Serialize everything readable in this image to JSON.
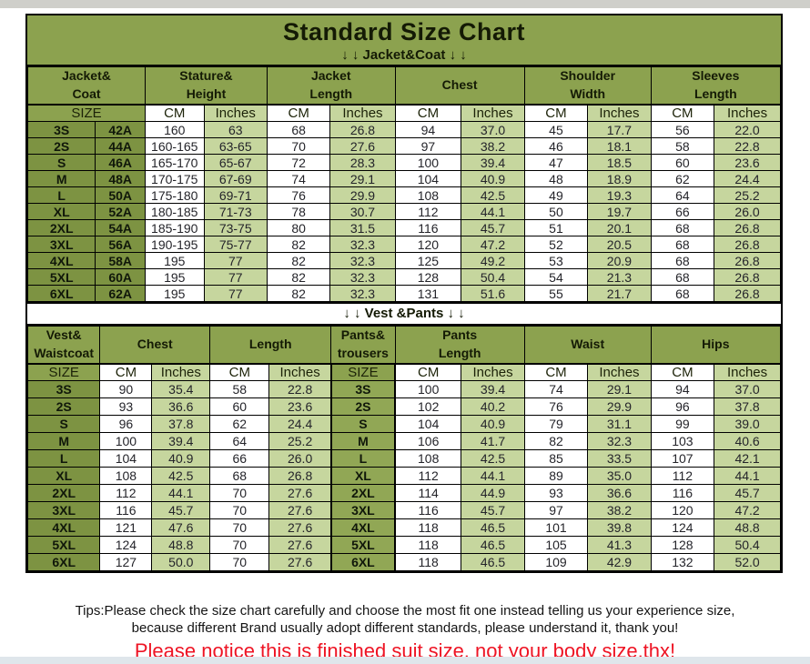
{
  "title": "Standard Size Chart",
  "banners": {
    "jacket": "↓ ↓  Jacket&Coat ↓ ↓",
    "vest": "↓ ↓  Vest &Pants ↓ ↓"
  },
  "jacket_table": {
    "column_groups": [
      {
        "label": "Jacket&\nCoat",
        "span": 2
      },
      {
        "label": "Stature&\nHeight",
        "span": 2
      },
      {
        "label": "Jacket\nLength",
        "span": 2
      },
      {
        "label": "Chest",
        "span": 2
      },
      {
        "label": "Shoulder\nWidth",
        "span": 2
      },
      {
        "label": "Sleeves\nLength",
        "span": 2
      }
    ],
    "unit_row": [
      "SIZE",
      "CM",
      "Inches",
      "CM",
      "Inches",
      "CM",
      "Inches",
      "CM",
      "Inches",
      "CM",
      "Inches"
    ],
    "rows": [
      [
        "3S",
        "42A",
        "160",
        "63",
        "68",
        "26.8",
        "94",
        "37.0",
        "45",
        "17.7",
        "56",
        "22.0"
      ],
      [
        "2S",
        "44A",
        "160-165",
        "63-65",
        "70",
        "27.6",
        "97",
        "38.2",
        "46",
        "18.1",
        "58",
        "22.8"
      ],
      [
        "S",
        "46A",
        "165-170",
        "65-67",
        "72",
        "28.3",
        "100",
        "39.4",
        "47",
        "18.5",
        "60",
        "23.6"
      ],
      [
        "M",
        "48A",
        "170-175",
        "67-69",
        "74",
        "29.1",
        "104",
        "40.9",
        "48",
        "18.9",
        "62",
        "24.4"
      ],
      [
        "L",
        "50A",
        "175-180",
        "69-71",
        "76",
        "29.9",
        "108",
        "42.5",
        "49",
        "19.3",
        "64",
        "25.2"
      ],
      [
        "XL",
        "52A",
        "180-185",
        "71-73",
        "78",
        "30.7",
        "112",
        "44.1",
        "50",
        "19.7",
        "66",
        "26.0"
      ],
      [
        "2XL",
        "54A",
        "185-190",
        "73-75",
        "80",
        "31.5",
        "116",
        "45.7",
        "51",
        "20.1",
        "68",
        "26.8"
      ],
      [
        "3XL",
        "56A",
        "190-195",
        "75-77",
        "82",
        "32.3",
        "120",
        "47.2",
        "52",
        "20.5",
        "68",
        "26.8"
      ],
      [
        "4XL",
        "58A",
        "195",
        "77",
        "82",
        "32.3",
        "125",
        "49.2",
        "53",
        "20.9",
        "68",
        "26.8"
      ],
      [
        "5XL",
        "60A",
        "195",
        "77",
        "82",
        "32.3",
        "128",
        "50.4",
        "54",
        "21.3",
        "68",
        "26.8"
      ],
      [
        "6XL",
        "62A",
        "195",
        "77",
        "82",
        "32.3",
        "131",
        "51.6",
        "55",
        "21.7",
        "68",
        "26.8"
      ]
    ]
  },
  "vest_table": {
    "column_groups": [
      {
        "label": "Vest&\nWaistcoat",
        "span": 1
      },
      {
        "label": "Chest",
        "span": 2
      },
      {
        "label": "Length",
        "span": 2
      },
      {
        "label": "Pants&\ntrousers",
        "span": 1
      },
      {
        "label": "Pants\nLength",
        "span": 2
      },
      {
        "label": "Waist",
        "span": 2
      },
      {
        "label": "Hips",
        "span": 2
      }
    ],
    "unit_row": [
      "SIZE",
      "CM",
      "Inches",
      "CM",
      "Inches",
      "SIZE",
      "CM",
      "Inches",
      "CM",
      "Inches",
      "CM",
      "Inches"
    ],
    "rows": [
      [
        "3S",
        "90",
        "35.4",
        "58",
        "22.8",
        "3S",
        "100",
        "39.4",
        "74",
        "29.1",
        "94",
        "37.0"
      ],
      [
        "2S",
        "93",
        "36.6",
        "60",
        "23.6",
        "2S",
        "102",
        "40.2",
        "76",
        "29.9",
        "96",
        "37.8"
      ],
      [
        "S",
        "96",
        "37.8",
        "62",
        "24.4",
        "S",
        "104",
        "40.9",
        "79",
        "31.1",
        "99",
        "39.0"
      ],
      [
        "M",
        "100",
        "39.4",
        "64",
        "25.2",
        "M",
        "106",
        "41.7",
        "82",
        "32.3",
        "103",
        "40.6"
      ],
      [
        "L",
        "104",
        "40.9",
        "66",
        "26.0",
        "L",
        "108",
        "42.5",
        "85",
        "33.5",
        "107",
        "42.1"
      ],
      [
        "XL",
        "108",
        "42.5",
        "68",
        "26.8",
        "XL",
        "112",
        "44.1",
        "89",
        "35.0",
        "112",
        "44.1"
      ],
      [
        "2XL",
        "112",
        "44.1",
        "70",
        "27.6",
        "2XL",
        "114",
        "44.9",
        "93",
        "36.6",
        "116",
        "45.7"
      ],
      [
        "3XL",
        "116",
        "45.7",
        "70",
        "27.6",
        "3XL",
        "116",
        "45.7",
        "97",
        "38.2",
        "120",
        "47.2"
      ],
      [
        "4XL",
        "121",
        "47.6",
        "70",
        "27.6",
        "4XL",
        "118",
        "46.5",
        "101",
        "39.8",
        "124",
        "48.8"
      ],
      [
        "5XL",
        "124",
        "48.8",
        "70",
        "27.6",
        "5XL",
        "118",
        "46.5",
        "105",
        "41.3",
        "128",
        "50.4"
      ],
      [
        "6XL",
        "127",
        "50.0",
        "70",
        "27.6",
        "6XL",
        "118",
        "46.5",
        "109",
        "42.9",
        "132",
        "52.0"
      ]
    ]
  },
  "footer": {
    "tips_line1": "Tips:Please check the size chart carefully and choose the most fit one instead telling us your experience size,",
    "tips_line2": "because different Brand usually adopt different standards, please understand it, thank you!",
    "notice": "Please notice this is finished suit size, not your body size,thx!"
  },
  "colors": {
    "header_green": "#8ca24f",
    "size_green": "#7d9342",
    "pants_size_green": "#91a755",
    "light_green": "#c6d69e",
    "notice_red": "#ee1424"
  }
}
